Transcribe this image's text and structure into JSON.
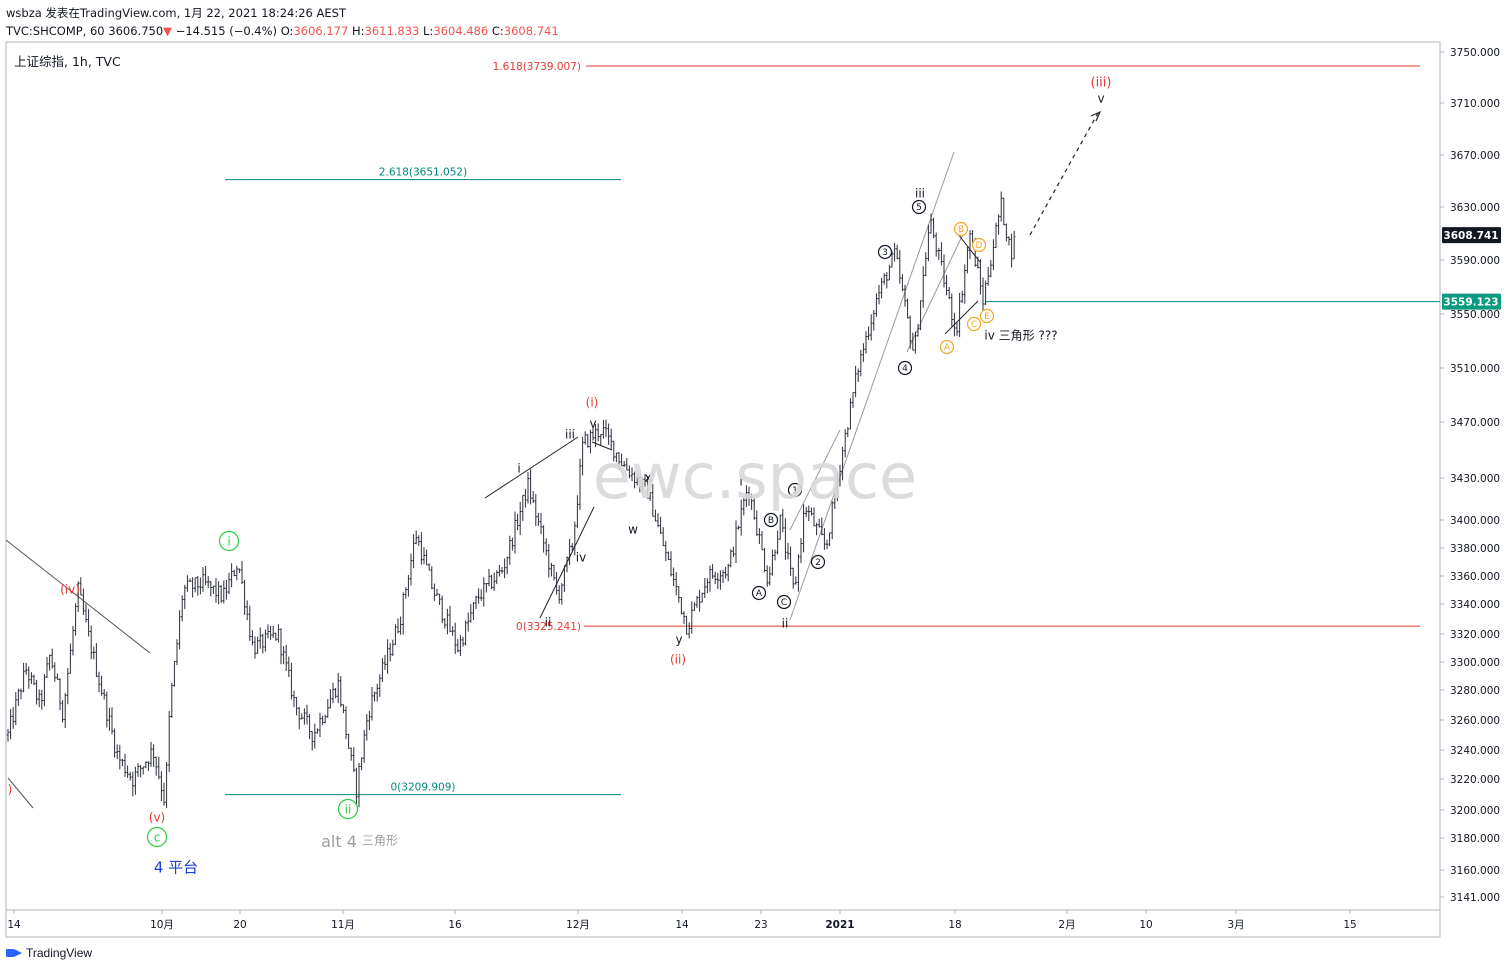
{
  "header": {
    "line1": "wsbza 发表在TradingView.com, 1月 22, 2021 18:24:26 AEST",
    "symbol": "TVC:SHCOMP, 60",
    "last": "3606.750",
    "change": "−14.515 (−0.4%)",
    "o_label": "O:",
    "o_value": "3606.177",
    "h_label": "H:",
    "h_value": "3611.833",
    "l_label": "L:",
    "l_value": "3604.486",
    "c_label": "C:",
    "c_value": "3608.741"
  },
  "legend_title": "上证综指, 1h, TVC",
  "watermark": "ewc.space",
  "footer_brand": "TradingView",
  "chart_data": {
    "type": "candlestick",
    "y_axis": {
      "min": 3130,
      "max": 3760,
      "ticks": [
        3141,
        3160,
        3180,
        3200,
        3220,
        3240,
        3260,
        3280,
        3300,
        3320,
        3340,
        3360,
        3380,
        3400,
        3430,
        3470,
        3510,
        3550,
        3590,
        3630,
        3670,
        3710,
        3750
      ],
      "tick_labels": [
        "3141.000",
        "3160.000",
        "3180.000",
        "3200.000",
        "3220.000",
        "3240.000",
        "3260.000",
        "3280.000",
        "3300.000",
        "3320.000",
        "3340.000",
        "3360.000",
        "3380.000",
        "3400.000",
        "3430.000",
        "3470.000",
        "3510.000",
        "3550.000",
        "3590.000",
        "3630.000",
        "3670.000",
        "3710.000",
        "3750.000"
      ]
    },
    "x_axis": {
      "tick_labels": [
        "14",
        "10月",
        "20",
        "11月",
        "16",
        "12月",
        "14",
        "23",
        "2021",
        "18",
        "2月",
        "10",
        "3月",
        "15"
      ]
    },
    "price_labels": [
      {
        "value": 3608.741,
        "text": "3608.741",
        "color": "#131722"
      },
      {
        "value": 3559.123,
        "text": "3559.123",
        "color": "#089981"
      }
    ],
    "horizontal_levels": [
      {
        "value": 3739.007,
        "label": "1.618(3739.007)",
        "color": "#e53935"
      },
      {
        "value": 3651.052,
        "label": "2.618(3651.052)",
        "color": "#00897b"
      },
      {
        "value": 3325.241,
        "label": "0(3325.241)",
        "color": "#e53935"
      },
      {
        "value": 3209.909,
        "label": "0(3209.909)",
        "color": "#00897b"
      },
      {
        "value": 3559.123,
        "label": "",
        "color": "#00897b"
      }
    ],
    "series_path": [
      {
        "t": 0,
        "p": 3250
      },
      {
        "t": 18,
        "p": 3295
      },
      {
        "t": 32,
        "p": 3270
      },
      {
        "t": 42,
        "p": 3305
      },
      {
        "t": 55,
        "p": 3265
      },
      {
        "t": 70,
        "p": 3350
      },
      {
        "t": 90,
        "p": 3290
      },
      {
        "t": 110,
        "p": 3235
      },
      {
        "t": 125,
        "p": 3220
      },
      {
        "t": 145,
        "p": 3240
      },
      {
        "t": 157,
        "p": 3205
      },
      {
        "t": 162,
        "p": 3270
      },
      {
        "t": 175,
        "p": 3350
      },
      {
        "t": 195,
        "p": 3355
      },
      {
        "t": 215,
        "p": 3345
      },
      {
        "t": 230,
        "p": 3370
      },
      {
        "t": 245,
        "p": 3310
      },
      {
        "t": 270,
        "p": 3320
      },
      {
        "t": 287,
        "p": 3270
      },
      {
        "t": 305,
        "p": 3250
      },
      {
        "t": 330,
        "p": 3285
      },
      {
        "t": 348,
        "p": 3212
      },
      {
        "t": 360,
        "p": 3265
      },
      {
        "t": 375,
        "p": 3295
      },
      {
        "t": 392,
        "p": 3330
      },
      {
        "t": 408,
        "p": 3390
      },
      {
        "t": 425,
        "p": 3350
      },
      {
        "t": 450,
        "p": 3310
      },
      {
        "t": 470,
        "p": 3345
      },
      {
        "t": 495,
        "p": 3365
      },
      {
        "t": 520,
        "p": 3425
      },
      {
        "t": 550,
        "p": 3345
      },
      {
        "t": 565,
        "p": 3385
      },
      {
        "t": 575,
        "p": 3455
      },
      {
        "t": 594,
        "p": 3465
      },
      {
        "t": 615,
        "p": 3440
      },
      {
        "t": 640,
        "p": 3420
      },
      {
        "t": 660,
        "p": 3370
      },
      {
        "t": 679,
        "p": 3325
      },
      {
        "t": 700,
        "p": 3360
      },
      {
        "t": 720,
        "p": 3365
      },
      {
        "t": 740,
        "p": 3425
      },
      {
        "t": 760,
        "p": 3357
      },
      {
        "t": 772,
        "p": 3400
      },
      {
        "t": 786,
        "p": 3348
      },
      {
        "t": 797,
        "p": 3410
      },
      {
        "t": 818,
        "p": 3380
      },
      {
        "t": 832,
        "p": 3440
      },
      {
        "t": 850,
        "p": 3510
      },
      {
        "t": 868,
        "p": 3560
      },
      {
        "t": 887,
        "p": 3595
      },
      {
        "t": 906,
        "p": 3520
      },
      {
        "t": 922,
        "p": 3620
      },
      {
        "t": 948,
        "p": 3537
      },
      {
        "t": 962,
        "p": 3610
      },
      {
        "t": 975,
        "p": 3560
      },
      {
        "t": 993,
        "p": 3632
      },
      {
        "t": 1003,
        "p": 3595
      },
      {
        "t": 1008,
        "p": 3608.741
      }
    ],
    "wave_labels": [
      {
        "text": "(iv)",
        "color": "#e53935"
      },
      {
        "text": "(v)",
        "color": "#e53935"
      },
      {
        "text": "c",
        "color": "#2ecc40",
        "circled": true
      },
      {
        "text": "4 平台",
        "color": "#1e3fd6"
      },
      {
        "text": "i",
        "color": "#2ecc40",
        "circled": true
      },
      {
        "text": "ii",
        "color": "#2ecc40",
        "circled": true
      },
      {
        "text": "alt 4",
        "color": "#9e9e9e"
      },
      {
        "text": "三角形",
        "color": "#9e9e9e"
      },
      {
        "text": "i",
        "color": "#131722"
      },
      {
        "text": "ii",
        "color": "#131722"
      },
      {
        "text": "iii",
        "color": "#131722"
      },
      {
        "text": "iv",
        "color": "#131722"
      },
      {
        "text": "v",
        "color": "#131722"
      },
      {
        "text": "(i)",
        "color": "#e53935"
      },
      {
        "text": "w",
        "color": "#131722"
      },
      {
        "text": "x",
        "color": "#131722"
      },
      {
        "text": "y",
        "color": "#131722"
      },
      {
        "text": "(ii)",
        "color": "#e53935"
      },
      {
        "text": "i",
        "color": "#131722"
      },
      {
        "text": "ii",
        "color": "#131722"
      },
      {
        "text": "A",
        "color": "#131722",
        "circled": true
      },
      {
        "text": "B",
        "color": "#131722",
        "circled": true
      },
      {
        "text": "C",
        "color": "#131722",
        "circled": true
      },
      {
        "text": "1",
        "color": "#131722",
        "circled": true
      },
      {
        "text": "2",
        "color": "#131722",
        "circled": true
      },
      {
        "text": "3",
        "color": "#131722",
        "circled": true
      },
      {
        "text": "4",
        "color": "#131722",
        "circled": true
      },
      {
        "text": "5",
        "color": "#131722",
        "circled": true
      },
      {
        "text": "iii",
        "color": "#131722"
      },
      {
        "text": "A",
        "color": "#f5a623",
        "circled": true
      },
      {
        "text": "B",
        "color": "#f5a623",
        "circled": true
      },
      {
        "text": "C",
        "color": "#f5a623",
        "circled": true
      },
      {
        "text": "D",
        "color": "#f5a623",
        "circled": true
      },
      {
        "text": "E",
        "color": "#f5a623",
        "circled": true
      },
      {
        "text": "iv 三角形 ???",
        "color": "#131722"
      },
      {
        "text": "(iii)",
        "color": "#e53935"
      },
      {
        "text": "v",
        "color": "#131722"
      },
      {
        "text": ")",
        "color": "#e53935"
      }
    ]
  }
}
